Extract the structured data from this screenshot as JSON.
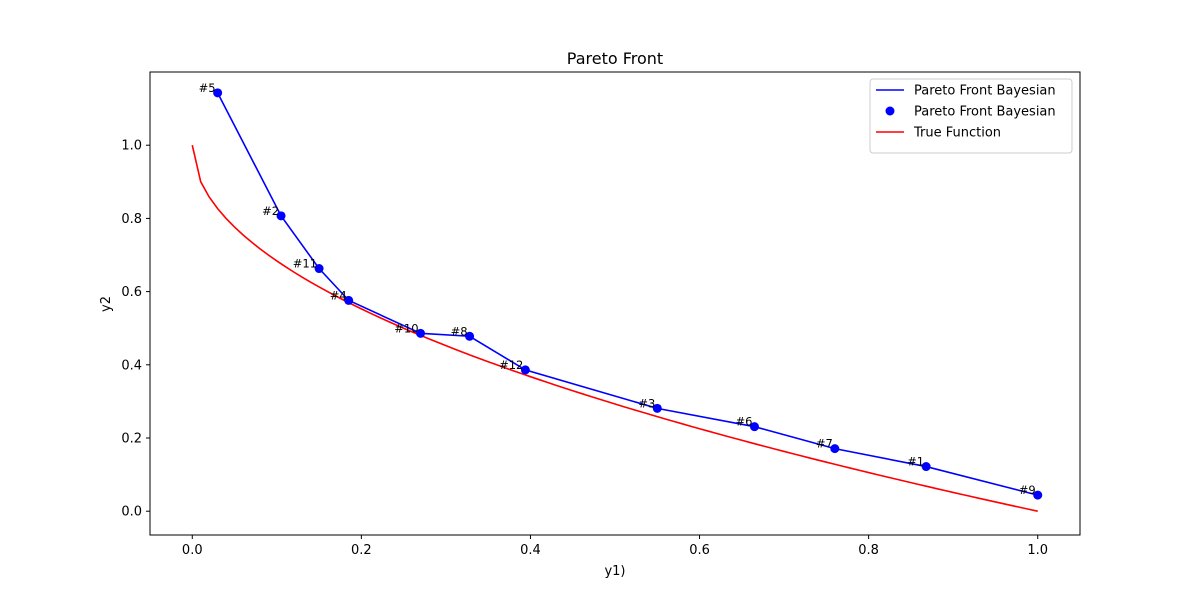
{
  "chart_data": {
    "type": "line",
    "title": "Pareto Front",
    "xlabel": "y1)",
    "ylabel": "y2",
    "xlim": [
      -0.05,
      1.05
    ],
    "ylim": [
      -0.065,
      1.2
    ],
    "xticks": [
      0.0,
      0.2,
      0.4,
      0.6,
      0.8,
      1.0
    ],
    "xtick_labels": [
      "0.0",
      "0.2",
      "0.4",
      "0.6",
      "0.8",
      "1.0"
    ],
    "yticks": [
      0.0,
      0.2,
      0.4,
      0.6,
      0.8,
      1.0
    ],
    "ytick_labels": [
      "0.0",
      "0.2",
      "0.4",
      "0.6",
      "0.8",
      "1.0"
    ],
    "grid": false,
    "legend_position": "top-right",
    "series": [
      {
        "name": "Pareto Front Bayesian",
        "kind": "line",
        "color": "#0000ff",
        "points": [
          {
            "x": 0.03,
            "y": 1.143
          },
          {
            "x": 0.105,
            "y": 0.807
          },
          {
            "x": 0.15,
            "y": 0.663
          },
          {
            "x": 0.185,
            "y": 0.576
          },
          {
            "x": 0.27,
            "y": 0.486
          },
          {
            "x": 0.328,
            "y": 0.478
          },
          {
            "x": 0.394,
            "y": 0.386
          },
          {
            "x": 0.55,
            "y": 0.281
          },
          {
            "x": 0.665,
            "y": 0.231
          },
          {
            "x": 0.76,
            "y": 0.171
          },
          {
            "x": 0.868,
            "y": 0.122
          },
          {
            "x": 1.0,
            "y": 0.044
          }
        ]
      },
      {
        "name": "Pareto Front Bayesian",
        "kind": "scatter",
        "color": "#0000ff",
        "points": [
          {
            "x": 0.03,
            "y": 1.143,
            "label": "#5"
          },
          {
            "x": 0.105,
            "y": 0.807,
            "label": "#2"
          },
          {
            "x": 0.15,
            "y": 0.663,
            "label": "#11"
          },
          {
            "x": 0.185,
            "y": 0.576,
            "label": "#4"
          },
          {
            "x": 0.27,
            "y": 0.486,
            "label": "#10"
          },
          {
            "x": 0.328,
            "y": 0.478,
            "label": "#8"
          },
          {
            "x": 0.394,
            "y": 0.386,
            "label": "#12"
          },
          {
            "x": 0.55,
            "y": 0.281,
            "label": "#3"
          },
          {
            "x": 0.665,
            "y": 0.231,
            "label": "#6"
          },
          {
            "x": 0.76,
            "y": 0.171,
            "label": "#7"
          },
          {
            "x": 0.868,
            "y": 0.122,
            "label": "#1"
          },
          {
            "x": 1.0,
            "y": 0.044,
            "label": "#9"
          }
        ]
      },
      {
        "name": "True Function",
        "kind": "line",
        "color": "#ff0000",
        "function": "1 - sqrt(x)",
        "x_range": [
          0.0,
          1.0
        ],
        "samples": 101
      }
    ]
  }
}
